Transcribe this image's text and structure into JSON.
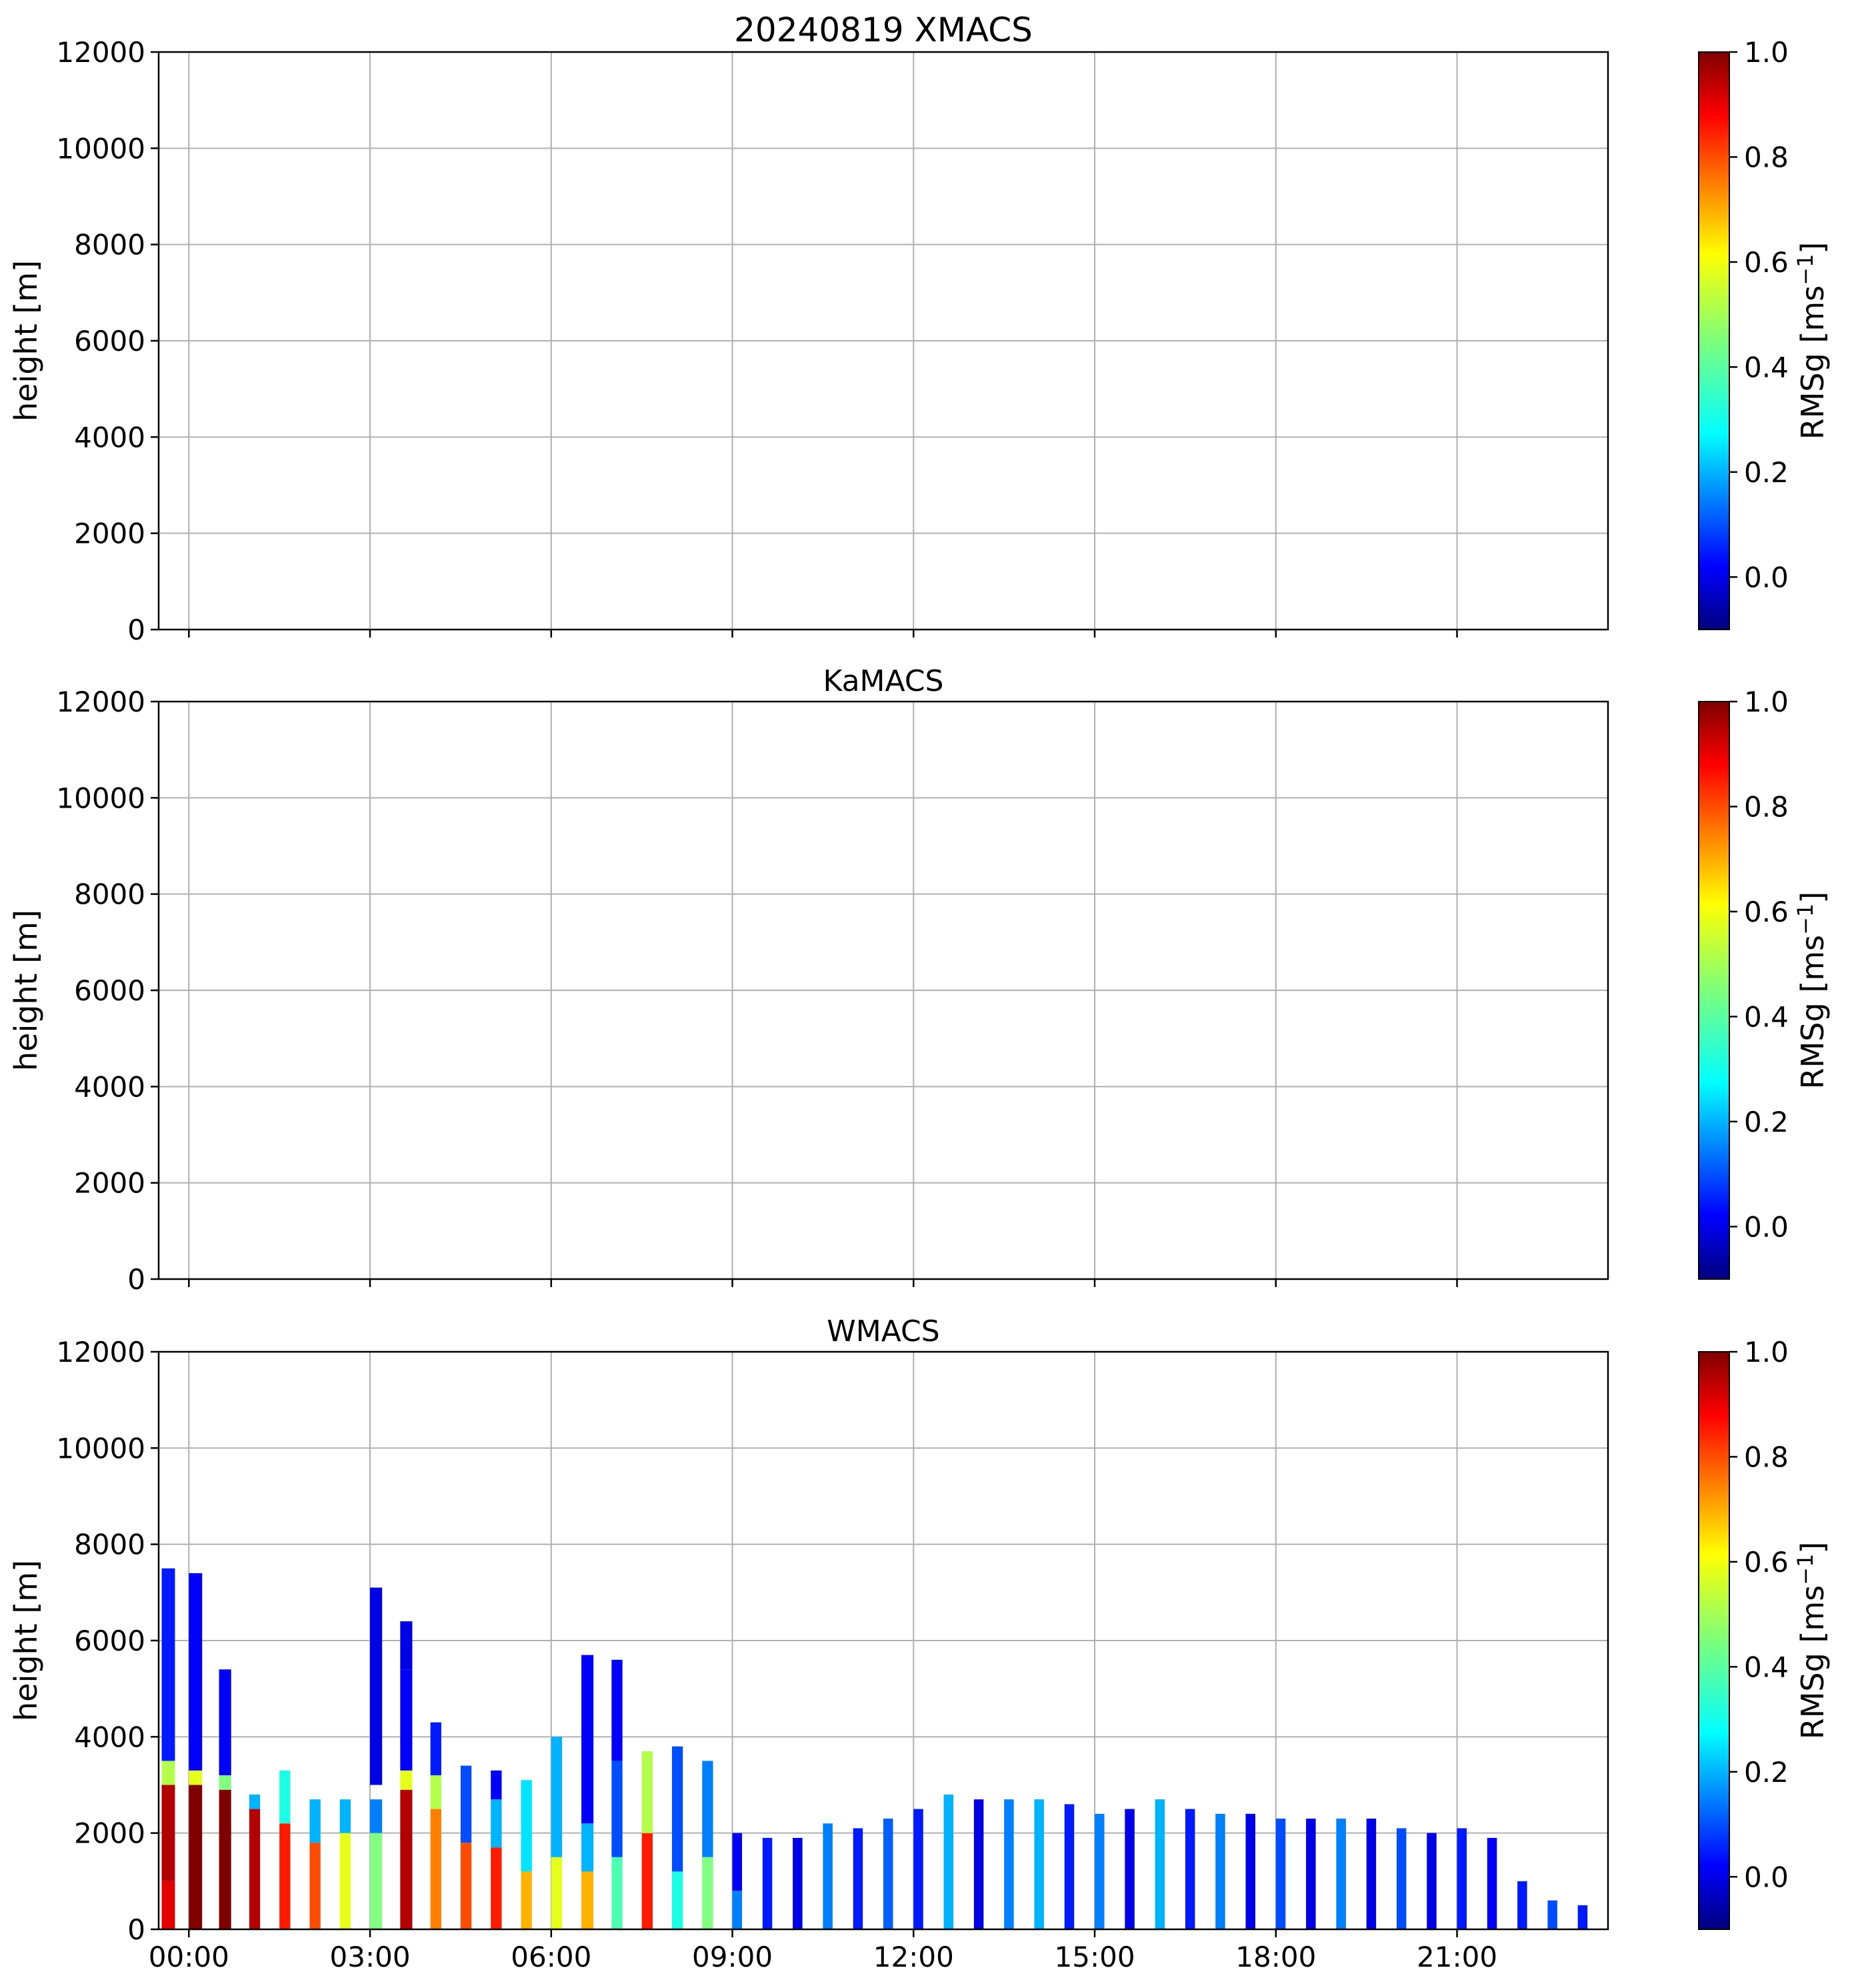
{
  "chart_data": [
    {
      "type": "heatmap",
      "title": "20240819 XMACS",
      "ylabel": "height [m]",
      "ylim": [
        0,
        12000
      ],
      "yticks": [
        0,
        2000,
        4000,
        6000,
        8000,
        10000,
        12000
      ],
      "xlim_hours": [
        -0.5,
        23.5
      ],
      "xticks_hours": [
        0,
        3,
        6,
        9,
        12,
        15,
        18,
        21
      ],
      "xtick_labels": [],
      "grid": true,
      "colorbar": {
        "label": "RMSg [ms",
        "label_exponent": "−1",
        "label_close": "]",
        "vmin": -0.1,
        "vmax": 1.0,
        "ticks": [
          0.0,
          0.2,
          0.4,
          0.6,
          0.8,
          1.0
        ],
        "tick_labels": [
          "0.0",
          "0.2",
          "0.4",
          "0.6",
          "0.8",
          "1.0"
        ]
      },
      "scans": []
    },
    {
      "type": "heatmap",
      "title": "KaMACS",
      "ylabel": "height [m]",
      "ylim": [
        0,
        12000
      ],
      "yticks": [
        0,
        2000,
        4000,
        6000,
        8000,
        10000,
        12000
      ],
      "xlim_hours": [
        -0.5,
        23.5
      ],
      "xticks_hours": [
        0,
        3,
        6,
        9,
        12,
        15,
        18,
        21
      ],
      "xtick_labels": [],
      "grid": true,
      "colorbar": {
        "label": "RMSg [ms",
        "label_exponent": "−1",
        "label_close": "]",
        "vmin": -0.1,
        "vmax": 1.0,
        "ticks": [
          0.0,
          0.2,
          0.4,
          0.6,
          0.8,
          1.0
        ],
        "tick_labels": [
          "0.0",
          "0.2",
          "0.4",
          "0.6",
          "0.8",
          "1.0"
        ]
      },
      "scans": []
    },
    {
      "type": "heatmap",
      "title": "WMACS",
      "ylabel": "height [m]",
      "ylim": [
        0,
        12000
      ],
      "yticks": [
        0,
        2000,
        4000,
        6000,
        8000,
        10000,
        12000
      ],
      "xlim_hours": [
        -0.5,
        23.5
      ],
      "xticks_hours": [
        0,
        3,
        6,
        9,
        12,
        15,
        18,
        21
      ],
      "xtick_labels": [
        "00:00",
        "03:00",
        "06:00",
        "09:00",
        "12:00",
        "15:00",
        "18:00",
        "21:00"
      ],
      "grid": true,
      "colorbar": {
        "label": "RMSg [ms",
        "label_exponent": "−1",
        "label_close": "]",
        "vmin": -0.1,
        "vmax": 1.0,
        "ticks": [
          0.0,
          0.2,
          0.4,
          0.6,
          0.8,
          1.0
        ],
        "tick_labels": [
          "0.0",
          "0.2",
          "0.4",
          "0.6",
          "0.8",
          "1.0"
        ]
      },
      "scans": [
        {
          "t": -0.45,
          "w": 0.22,
          "top": 7500,
          "layers": [
            [
              0,
              1000,
              0.9
            ],
            [
              1000,
              3000,
              0.95
            ],
            [
              3000,
              3500,
              0.55
            ],
            [
              3500,
              7500,
              0.15
            ]
          ]
        },
        {
          "t": 0.0,
          "w": 0.22,
          "top": 7400,
          "layers": [
            [
              0,
              3000,
              1.0
            ],
            [
              3000,
              3300,
              0.6
            ],
            [
              3300,
              7400,
              0.12
            ]
          ]
        },
        {
          "t": 0.5,
          "w": 0.2,
          "top": 5400,
          "layers": [
            [
              0,
              2900,
              1.0
            ],
            [
              2900,
              3200,
              0.5
            ],
            [
              3200,
              5400,
              0.12
            ]
          ]
        },
        {
          "t": 1.0,
          "w": 0.18,
          "top": 2800,
          "layers": [
            [
              0,
              2500,
              0.95
            ],
            [
              2500,
              2800,
              0.3
            ]
          ]
        },
        {
          "t": 1.5,
          "w": 0.18,
          "top": 3300,
          "layers": [
            [
              0,
              2200,
              0.85
            ],
            [
              2200,
              3300,
              0.4
            ]
          ]
        },
        {
          "t": 2.0,
          "w": 0.18,
          "top": 2700,
          "layers": [
            [
              0,
              1800,
              0.8
            ],
            [
              1800,
              2700,
              0.3
            ]
          ]
        },
        {
          "t": 2.5,
          "w": 0.18,
          "top": 2700,
          "layers": [
            [
              0,
              2000,
              0.6
            ],
            [
              2000,
              2700,
              0.3
            ]
          ]
        },
        {
          "t": 3.0,
          "w": 0.2,
          "top": 7100,
          "layers": [
            [
              0,
              2000,
              0.5
            ],
            [
              2000,
              2700,
              0.25
            ],
            [
              3000,
              7100,
              0.1
            ]
          ]
        },
        {
          "t": 3.5,
          "w": 0.2,
          "top": 6400,
          "layers": [
            [
              0,
              2900,
              0.95
            ],
            [
              2900,
              3300,
              0.6
            ],
            [
              3300,
              5400,
              0.12
            ],
            [
              5400,
              6400,
              0.1
            ]
          ]
        },
        {
          "t": 4.0,
          "w": 0.18,
          "top": 4300,
          "layers": [
            [
              0,
              2500,
              0.75
            ],
            [
              2500,
              3200,
              0.55
            ],
            [
              3200,
              4300,
              0.15
            ]
          ]
        },
        {
          "t": 4.5,
          "w": 0.18,
          "top": 3400,
          "layers": [
            [
              0,
              1800,
              0.8
            ],
            [
              1800,
              3400,
              0.2
            ]
          ]
        },
        {
          "t": 5.0,
          "w": 0.18,
          "top": 3300,
          "layers": [
            [
              0,
              1700,
              0.85
            ],
            [
              1700,
              2700,
              0.3
            ],
            [
              2700,
              3300,
              0.12
            ]
          ]
        },
        {
          "t": 5.5,
          "w": 0.18,
          "top": 3100,
          "layers": [
            [
              0,
              1200,
              0.7
            ],
            [
              1200,
              3100,
              0.35
            ]
          ]
        },
        {
          "t": 6.0,
          "w": 0.18,
          "top": 4000,
          "layers": [
            [
              0,
              1500,
              0.6
            ],
            [
              1500,
              4000,
              0.3
            ]
          ]
        },
        {
          "t": 6.5,
          "w": 0.2,
          "top": 5700,
          "layers": [
            [
              0,
              1200,
              0.7
            ],
            [
              1200,
              2200,
              0.3
            ],
            [
              2200,
              5700,
              0.12
            ]
          ]
        },
        {
          "t": 7.0,
          "w": 0.18,
          "top": 5600,
          "layers": [
            [
              0,
              1500,
              0.45
            ],
            [
              1500,
              3500,
              0.2
            ],
            [
              3500,
              5600,
              0.12
            ]
          ]
        },
        {
          "t": 7.5,
          "w": 0.18,
          "top": 3700,
          "layers": [
            [
              0,
              2000,
              0.85
            ],
            [
              2000,
              3700,
              0.55
            ]
          ]
        },
        {
          "t": 8.0,
          "w": 0.18,
          "top": 3800,
          "layers": [
            [
              0,
              1200,
              0.4
            ],
            [
              1200,
              3800,
              0.2
            ]
          ]
        },
        {
          "t": 8.5,
          "w": 0.18,
          "top": 3500,
          "layers": [
            [
              0,
              1500,
              0.5
            ],
            [
              1500,
              3500,
              0.25
            ]
          ]
        },
        {
          "t": 9.0,
          "w": 0.16,
          "top": 2000,
          "layers": [
            [
              0,
              800,
              0.25
            ],
            [
              800,
              2000,
              0.12
            ]
          ]
        },
        {
          "t": 9.5,
          "w": 0.16,
          "top": 1900,
          "layers": [
            [
              0,
              1900,
              0.15
            ]
          ]
        },
        {
          "t": 10.0,
          "w": 0.16,
          "top": 1900,
          "layers": [
            [
              0,
              1900,
              0.1
            ]
          ]
        },
        {
          "t": 10.5,
          "w": 0.16,
          "top": 2200,
          "layers": [
            [
              0,
              2200,
              0.25
            ]
          ]
        },
        {
          "t": 11.0,
          "w": 0.16,
          "top": 2100,
          "layers": [
            [
              0,
              2100,
              0.15
            ]
          ]
        },
        {
          "t": 11.5,
          "w": 0.16,
          "top": 2300,
          "layers": [
            [
              0,
              2300,
              0.22
            ]
          ]
        },
        {
          "t": 12.0,
          "w": 0.16,
          "top": 2500,
          "layers": [
            [
              0,
              2500,
              0.15
            ]
          ]
        },
        {
          "t": 12.5,
          "w": 0.16,
          "top": 2800,
          "layers": [
            [
              0,
              2800,
              0.3
            ]
          ]
        },
        {
          "t": 13.0,
          "w": 0.16,
          "top": 2700,
          "layers": [
            [
              0,
              2700,
              0.1
            ]
          ]
        },
        {
          "t": 13.5,
          "w": 0.16,
          "top": 2700,
          "layers": [
            [
              0,
              2700,
              0.25
            ]
          ]
        },
        {
          "t": 14.0,
          "w": 0.16,
          "top": 2700,
          "layers": [
            [
              0,
              2700,
              0.3
            ]
          ]
        },
        {
          "t": 14.5,
          "w": 0.16,
          "top": 2600,
          "layers": [
            [
              0,
              2600,
              0.15
            ]
          ]
        },
        {
          "t": 15.0,
          "w": 0.16,
          "top": 2400,
          "layers": [
            [
              0,
              2400,
              0.25
            ]
          ]
        },
        {
          "t": 15.5,
          "w": 0.16,
          "top": 2500,
          "layers": [
            [
              0,
              2500,
              0.1
            ]
          ]
        },
        {
          "t": 16.0,
          "w": 0.16,
          "top": 2700,
          "layers": [
            [
              0,
              2700,
              0.3
            ]
          ]
        },
        {
          "t": 16.5,
          "w": 0.16,
          "top": 2500,
          "layers": [
            [
              0,
              2500,
              0.15
            ]
          ]
        },
        {
          "t": 17.0,
          "w": 0.16,
          "top": 2400,
          "layers": [
            [
              0,
              2400,
              0.25
            ]
          ]
        },
        {
          "t": 17.5,
          "w": 0.16,
          "top": 2400,
          "layers": [
            [
              0,
              2400,
              0.1
            ]
          ]
        },
        {
          "t": 18.0,
          "w": 0.16,
          "top": 2300,
          "layers": [
            [
              0,
              2300,
              0.2
            ]
          ]
        },
        {
          "t": 18.5,
          "w": 0.16,
          "top": 2300,
          "layers": [
            [
              0,
              2300,
              0.1
            ]
          ]
        },
        {
          "t": 19.0,
          "w": 0.16,
          "top": 2300,
          "layers": [
            [
              0,
              2300,
              0.25
            ]
          ]
        },
        {
          "t": 19.5,
          "w": 0.16,
          "top": 2300,
          "layers": [
            [
              0,
              2300,
              0.1
            ]
          ]
        },
        {
          "t": 20.0,
          "w": 0.16,
          "top": 2100,
          "layers": [
            [
              0,
              2100,
              0.2
            ]
          ]
        },
        {
          "t": 20.5,
          "w": 0.16,
          "top": 2000,
          "layers": [
            [
              0,
              2000,
              0.1
            ]
          ]
        },
        {
          "t": 21.0,
          "w": 0.16,
          "top": 2100,
          "layers": [
            [
              0,
              2100,
              0.15
            ]
          ]
        },
        {
          "t": 21.5,
          "w": 0.16,
          "top": 1900,
          "layers": [
            [
              0,
              1900,
              0.12
            ]
          ]
        },
        {
          "t": 22.0,
          "w": 0.16,
          "top": 1000,
          "layers": [
            [
              0,
              1000,
              0.15
            ]
          ]
        },
        {
          "t": 22.5,
          "w": 0.16,
          "top": 600,
          "layers": [
            [
              0,
              600,
              0.2
            ]
          ]
        },
        {
          "t": 23.0,
          "w": 0.16,
          "top": 500,
          "layers": [
            [
              0,
              500,
              0.15
            ]
          ]
        }
      ]
    }
  ]
}
